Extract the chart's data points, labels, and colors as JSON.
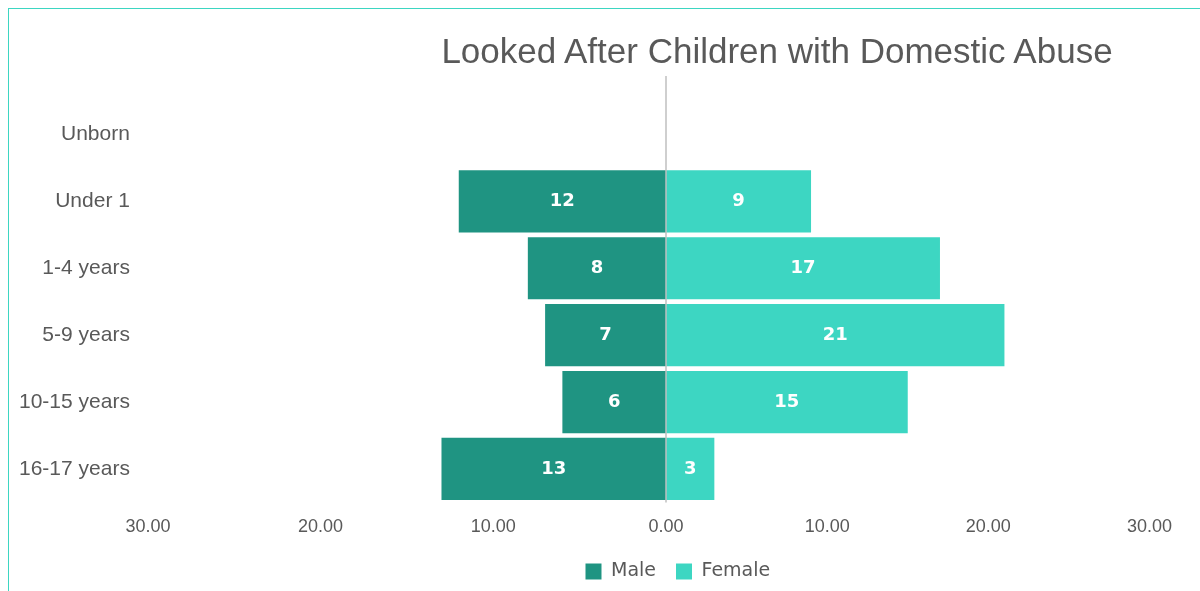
{
  "chart_data": [
    {
      "type": "bar",
      "orientation": "horizontal",
      "title": "Looked After Children with Domestic Abuse",
      "categories": [
        "Unborn",
        "Under 1",
        "1-4 years",
        "5-9 years",
        "10-15 years",
        "16-17 years"
      ],
      "series": [
        {
          "name": "Male",
          "color": "#1f9482",
          "values": [
            null,
            12,
            8,
            7,
            6,
            13
          ]
        }
      ],
      "xlim": [
        30,
        0
      ],
      "xticks": [
        {
          "value": 30,
          "label": "30.00"
        },
        {
          "value": 20,
          "label": "20.00"
        },
        {
          "value": 10,
          "label": "10.00"
        }
      ],
      "data_labels": true,
      "legend": "bottom"
    },
    {
      "type": "bar",
      "orientation": "horizontal",
      "series": [
        {
          "name": "Female",
          "color": "#3dd6c2",
          "values": [
            null,
            9,
            17,
            21,
            15,
            3
          ]
        }
      ],
      "xlim": [
        0,
        30
      ],
      "xticks": [
        {
          "value": 0,
          "label": "0.00"
        },
        {
          "value": 10,
          "label": "10.00"
        },
        {
          "value": 20,
          "label": "20.00"
        },
        {
          "value": 30,
          "label": "30.00"
        }
      ],
      "data_labels": true,
      "legend": "bottom",
      "tick_labels": "x"
    }
  ]
}
